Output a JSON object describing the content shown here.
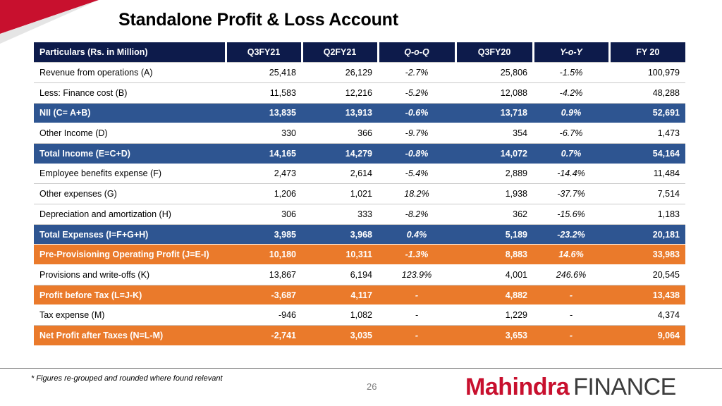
{
  "title": "Standalone Profit & Loss Account",
  "table": {
    "headers": [
      "Particulars (Rs. in Million)",
      "Q3FY21",
      "Q2FY21",
      "Q-o-Q",
      "Q3FY20",
      "Y-o-Y",
      "FY 20"
    ],
    "rows": [
      {
        "style": "plain",
        "cells": [
          "Revenue from operations (A)",
          "25,418",
          "26,129",
          "-2.7%",
          "25,806",
          "-1.5%",
          "100,979"
        ]
      },
      {
        "style": "plain",
        "cells": [
          "Less: Finance cost (B)",
          "11,583",
          "12,216",
          "-5.2%",
          "12,088",
          "-4.2%",
          "48,288"
        ]
      },
      {
        "style": "blue",
        "cells": [
          "NII (C= A+B)",
          "13,835",
          "13,913",
          "-0.6%",
          "13,718",
          "0.9%",
          "52,691"
        ]
      },
      {
        "style": "plain",
        "cells": [
          "Other Income (D)",
          "330",
          "366",
          "-9.7%",
          "354",
          "-6.7%",
          "1,473"
        ]
      },
      {
        "style": "blue",
        "cells": [
          "Total Income (E=C+D)",
          "14,165",
          "14,279",
          "-0.8%",
          "14,072",
          "0.7%",
          "54,164"
        ]
      },
      {
        "style": "plain",
        "cells": [
          "Employee benefits expense (F)",
          "2,473",
          "2,614",
          "-5.4%",
          "2,889",
          "-14.4%",
          "11,484"
        ]
      },
      {
        "style": "plain",
        "cells": [
          "Other expenses (G)",
          "1,206",
          "1,021",
          "18.2%",
          "1,938",
          "-37.7%",
          "7,514"
        ]
      },
      {
        "style": "plain",
        "cells": [
          "Depreciation and amortization (H)",
          "306",
          "333",
          "-8.2%",
          "362",
          "-15.6%",
          "1,183"
        ]
      },
      {
        "style": "blue",
        "cells": [
          "Total Expenses (I=F+G+H)",
          "3,985",
          "3,968",
          "0.4%",
          "5,189",
          "-23.2%",
          "20,181"
        ]
      },
      {
        "style": "orange",
        "cells": [
          "Pre-Provisioning Operating Profit (J=E-I)",
          "10,180",
          "10,311",
          "-1.3%",
          "8,883",
          "14.6%",
          "33,983"
        ]
      },
      {
        "style": "plain",
        "cells": [
          "Provisions and write-offs (K)",
          "13,867",
          "6,194",
          "123.9%",
          "4,001",
          "246.6%",
          "20,545"
        ]
      },
      {
        "style": "orange",
        "cells": [
          "Profit before Tax (L=J-K)",
          "-3,687",
          "4,117",
          "-",
          "4,882",
          "-",
          "13,438"
        ]
      },
      {
        "style": "plain",
        "cells": [
          "Tax expense (M)",
          "-946",
          "1,082",
          "-",
          "1,229",
          "-",
          "4,374"
        ]
      },
      {
        "style": "orange",
        "cells": [
          "Net Profit after Taxes (N=L-M)",
          "-2,741",
          "3,035",
          "-",
          "3,653",
          "-",
          "9,064"
        ]
      }
    ]
  },
  "footnote": "* Figures re-grouped and rounded where found relevant",
  "page_number": "26",
  "logo": {
    "brand": "Mahindra",
    "suffix": "FINANCE"
  },
  "colors": {
    "header": "#0d1b4b",
    "blue_row": "#2e5591",
    "orange_row": "#ea7a2b",
    "brand_red": "#c8102e"
  }
}
